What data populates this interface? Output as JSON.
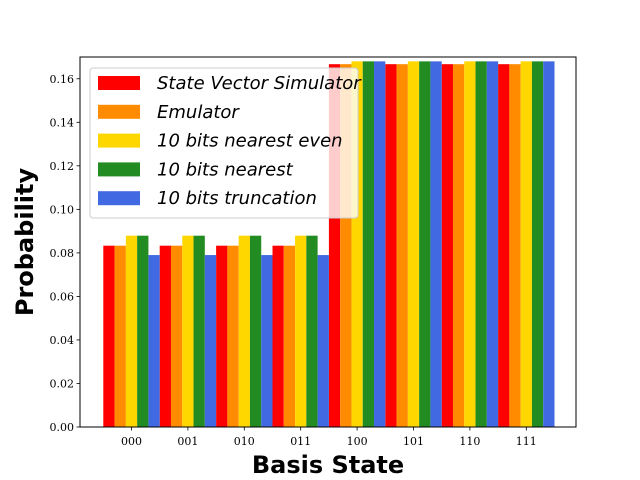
{
  "chart_data": {
    "type": "bar",
    "xlabel": "Basis State",
    "ylabel": "Probability",
    "categories": [
      "000",
      "001",
      "010",
      "011",
      "100",
      "101",
      "110",
      "111"
    ],
    "ylim": [
      0,
      0.17
    ],
    "yticks": [
      "0.00",
      "0.02",
      "0.04",
      "0.06",
      "0.08",
      "0.10",
      "0.12",
      "0.14",
      "0.16"
    ],
    "legend_position": "top-left",
    "grid": false,
    "series": [
      {
        "name": "State Vector Simulator",
        "color": "#ff0000",
        "values": [
          0.0833,
          0.0833,
          0.0833,
          0.0833,
          0.1667,
          0.1667,
          0.1667,
          0.1667
        ]
      },
      {
        "name": "Emulator",
        "color": "#ff8c00",
        "values": [
          0.0833,
          0.0833,
          0.0833,
          0.0833,
          0.1667,
          0.1667,
          0.1667,
          0.1667
        ]
      },
      {
        "name": "10 bits nearest even",
        "color": "#ffd700",
        "values": [
          0.0879,
          0.0879,
          0.0879,
          0.0879,
          0.168,
          0.168,
          0.168,
          0.168
        ]
      },
      {
        "name": "10 bits nearest",
        "color": "#228b22",
        "values": [
          0.0879,
          0.0879,
          0.0879,
          0.0879,
          0.168,
          0.168,
          0.168,
          0.168
        ]
      },
      {
        "name": "10 bits truncation",
        "color": "#4169e1",
        "values": [
          0.079,
          0.079,
          0.079,
          0.079,
          0.168,
          0.168,
          0.168,
          0.168
        ]
      }
    ]
  }
}
